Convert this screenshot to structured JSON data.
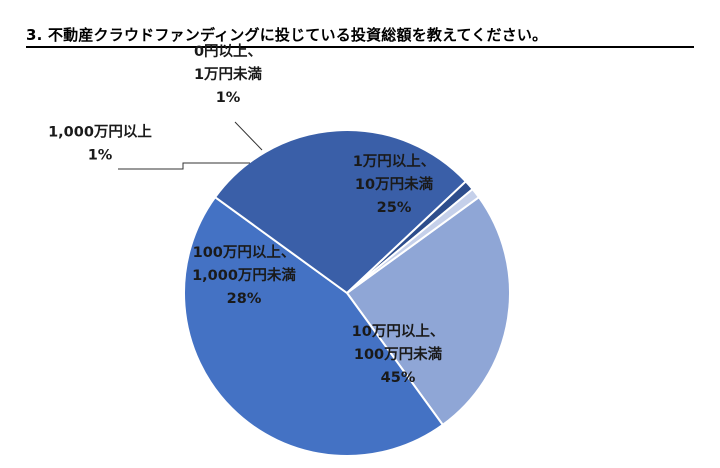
{
  "title": "3. 不動産クラウドファンディングに投じている投資総額を教えてください。",
  "chart_data": {
    "type": "pie",
    "start_angle_deg": -36,
    "direction": "clockwise",
    "slices": [
      {
        "label_lines": [
          "1万円以上、",
          "10万円未満"
        ],
        "value_text": "25%",
        "value": 25,
        "color": "#8fa6d6"
      },
      {
        "label_lines": [
          "10万円以上、",
          "100万円未満"
        ],
        "value_text": "45%",
        "value": 45,
        "color": "#4472c4"
      },
      {
        "label_lines": [
          "100万円以上、",
          "1,000万円未満"
        ],
        "value_text": "28%",
        "value": 28,
        "color": "#3a5fa8"
      },
      {
        "label_lines": [
          "1,000万円以上"
        ],
        "value_text": "1%",
        "value": 1,
        "color": "#2d4d8c"
      },
      {
        "label_lines": [
          "0円以上、",
          "1万円未満"
        ],
        "value_text": "1%",
        "value": 1,
        "color": "#c5d0ea"
      }
    ]
  }
}
